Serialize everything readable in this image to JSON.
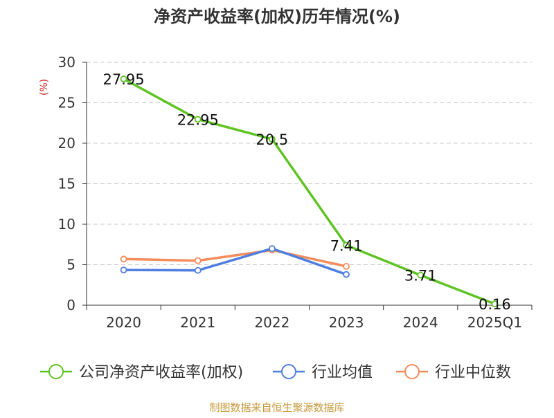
{
  "chart_data": {
    "type": "line",
    "title": "净资产收益率(加权)历年情况(%)",
    "ylabel": "(%)",
    "xlabel": "",
    "ylim": [
      0,
      30
    ],
    "yticks": [
      0,
      5,
      10,
      15,
      20,
      25,
      30
    ],
    "categories": [
      "2020",
      "2021",
      "2022",
      "2023",
      "2024",
      "2025Q1"
    ],
    "series": [
      {
        "name": "公司净资产收益率(加权)",
        "color": "#5ec422",
        "values": [
          27.95,
          22.95,
          20.5,
          7.41,
          3.71,
          0.16
        ],
        "labels": [
          "27.95",
          "22.95",
          "20.5",
          "7.41",
          "3.71",
          "0.16"
        ]
      },
      {
        "name": "行业均值",
        "color": "#4e7fe0",
        "values": [
          4.35,
          4.3,
          7.0,
          3.8,
          null,
          null
        ]
      },
      {
        "name": "行业中位数",
        "color": "#f48c5c",
        "values": [
          5.7,
          5.5,
          6.8,
          4.8,
          null,
          null
        ]
      }
    ],
    "legend_position": "bottom",
    "grid": true
  },
  "footer": {
    "source": "制图数据来自恒生聚源数据库"
  },
  "colors": {
    "axis": "#333333",
    "grid": "#c8c8c8",
    "ylabel": "#d42020",
    "footer": "#c59a3c"
  }
}
